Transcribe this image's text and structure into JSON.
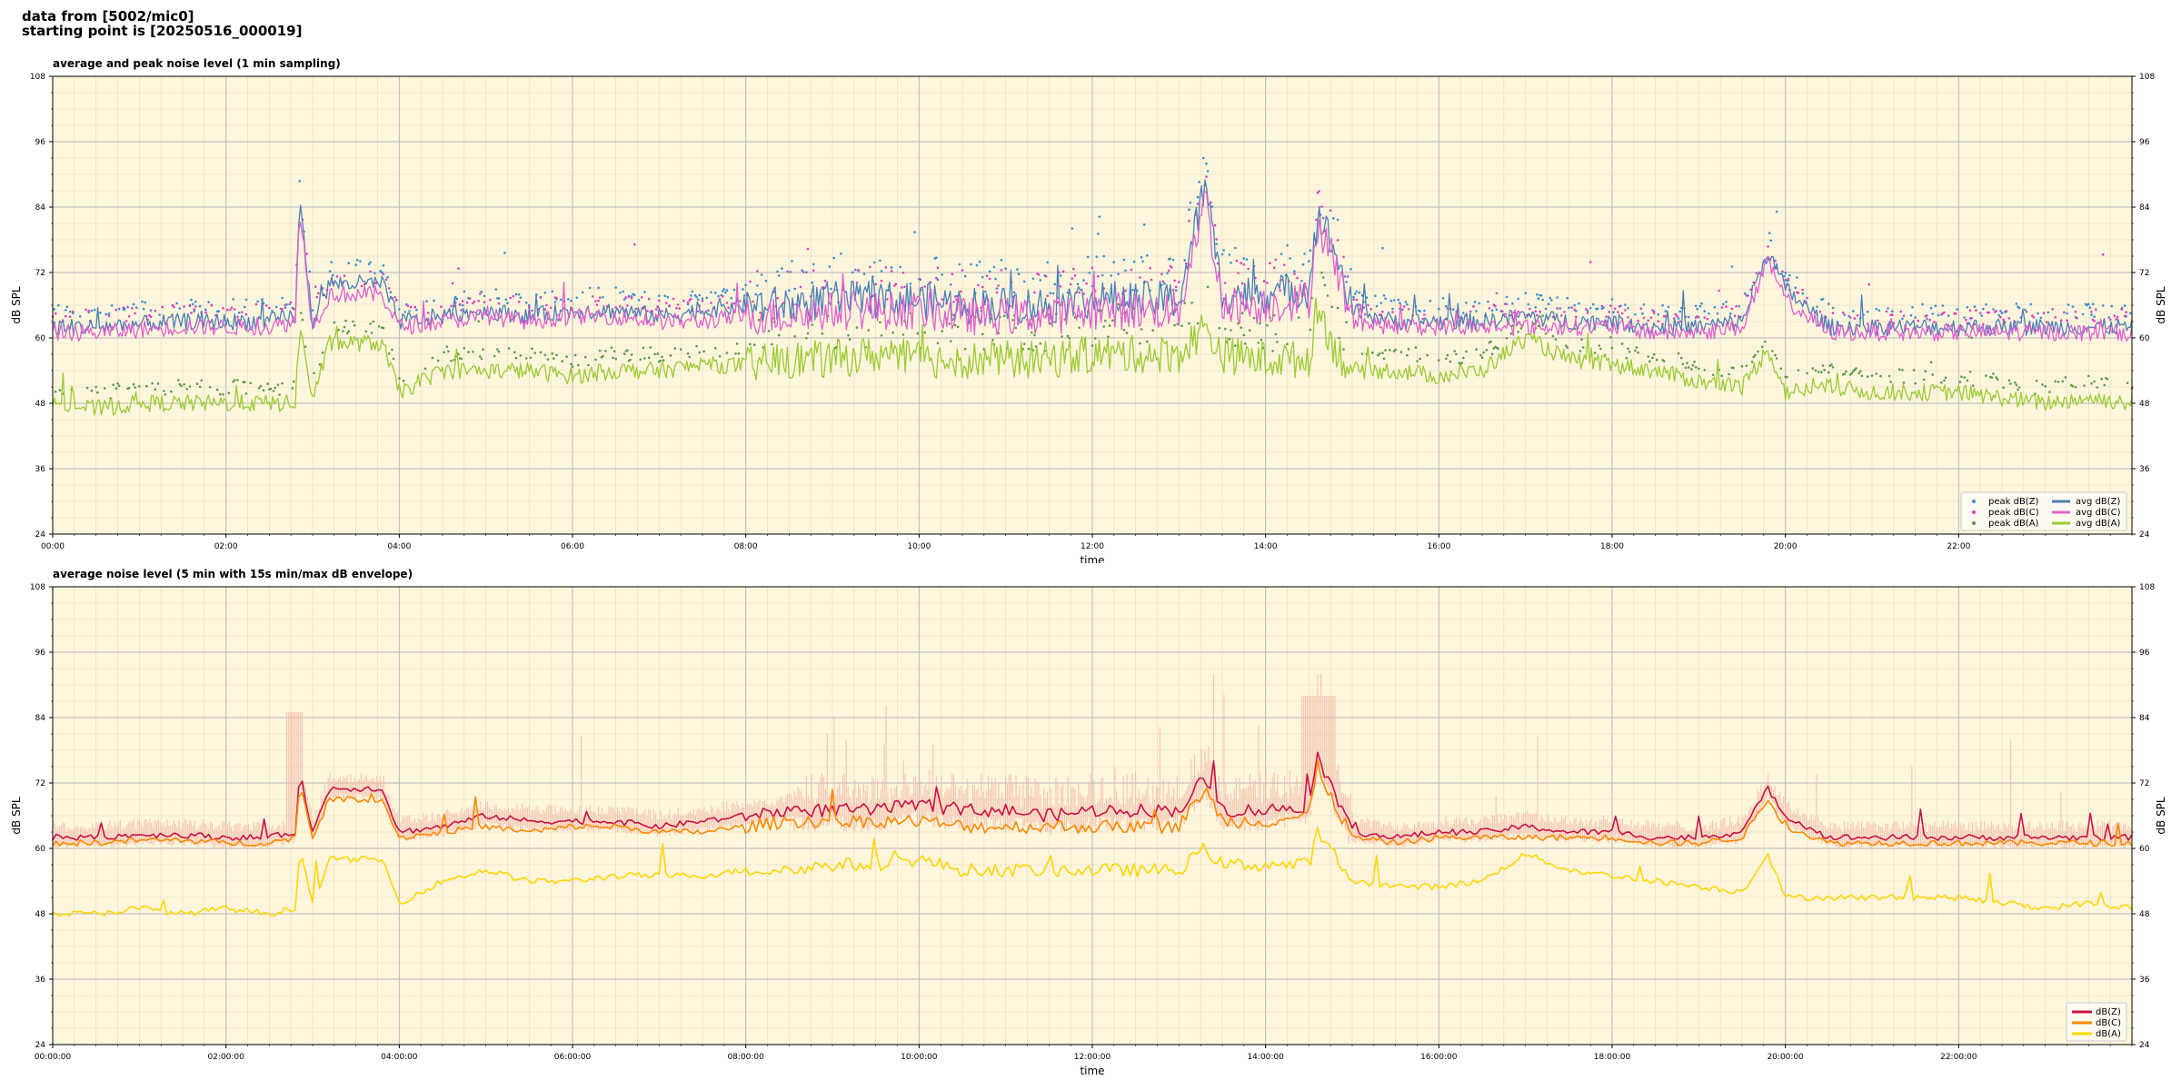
{
  "header": {
    "line1": "data from [5002/mic0]",
    "line2": "starting point is [20250516_000019]"
  },
  "chart_data": [
    {
      "type": "line",
      "title": "average and peak noise level (1 min sampling)",
      "xlabel": "time",
      "ylabel": "dB SPL",
      "ylim": [
        24,
        108
      ],
      "xlim_hours": [
        0,
        24
      ],
      "yticks": [
        "24",
        "36",
        "48",
        "60",
        "72",
        "84",
        "96",
        "108"
      ],
      "xticks": [
        "00:00",
        "02:00",
        "04:00",
        "06:00",
        "08:00",
        "10:00",
        "12:00",
        "14:00",
        "16:00",
        "18:00",
        "20:00",
        "22:00"
      ],
      "grid": true,
      "legend_position": "bottom-right",
      "legend": [
        "peak dB(Z)",
        "peak dB(C)",
        "peak dB(A)",
        "avg dB(Z)",
        "avg dB(C)",
        "avg dB(A)"
      ],
      "colors": {
        "Z": "#4a7fb5",
        "C": "#e060d0",
        "A": "#99cc33",
        "Zpeak": "#3a8fd0",
        "Cpeak": "#e040c0",
        "Apeak": "#5a9a4a"
      },
      "series": [
        {
          "name": "avg dB(Z)",
          "x": [
            0,
            0.5,
            1,
            1.5,
            2,
            2.5,
            2.8,
            2.85,
            3.0,
            3.2,
            3.5,
            3.8,
            4.0,
            4.5,
            5,
            5.5,
            6,
            6.5,
            7,
            7.5,
            8,
            8.5,
            9,
            9.5,
            10,
            10.5,
            11,
            11.5,
            12,
            12.5,
            13,
            13.3,
            13.5,
            14,
            14.5,
            14.6,
            14.8,
            15,
            15.5,
            16,
            16.5,
            17,
            17.5,
            18,
            18.5,
            19,
            19.5,
            19.8,
            20,
            20.5,
            21,
            21.5,
            22,
            22.5,
            23,
            23.5,
            24
          ],
          "y": [
            62,
            62,
            62.5,
            63,
            63,
            63,
            64,
            85,
            63,
            70,
            70,
            70,
            63,
            64,
            65,
            64,
            65,
            65,
            64,
            65,
            66,
            66,
            67,
            67,
            67,
            66,
            66,
            66,
            67,
            67,
            67,
            88,
            68,
            68,
            69,
            83,
            76,
            65,
            63,
            63,
            63,
            64,
            63,
            63,
            62,
            62,
            63,
            76,
            69,
            62,
            62,
            62,
            62,
            62,
            62,
            62,
            62
          ]
        },
        {
          "name": "avg dB(C)",
          "x": [
            0,
            0.5,
            1,
            1.5,
            2,
            2.5,
            2.8,
            2.85,
            3.0,
            3.2,
            3.5,
            3.8,
            4.0,
            4.5,
            5,
            5.5,
            6,
            6.5,
            7,
            7.5,
            8,
            8.5,
            9,
            9.5,
            10,
            10.5,
            11,
            11.5,
            12,
            12.5,
            13,
            13.3,
            13.5,
            14,
            14.5,
            14.6,
            14.8,
            15,
            15.5,
            16,
            16.5,
            17,
            17.5,
            18,
            18.5,
            19,
            19.5,
            19.8,
            20,
            20.5,
            21,
            21.5,
            22,
            22.5,
            23,
            23.5,
            24
          ],
          "y": [
            61,
            61,
            61.5,
            62,
            62,
            62,
            63,
            84,
            62,
            68,
            68,
            68,
            62,
            63,
            64,
            63,
            64,
            64,
            63,
            63,
            64,
            64,
            65,
            65,
            65,
            64,
            64,
            64,
            65,
            65,
            65,
            86,
            66,
            66,
            67,
            81,
            74,
            63,
            62,
            62,
            62,
            62,
            62,
            62,
            61,
            61,
            62,
            74,
            67,
            61,
            61,
            61,
            61,
            61,
            61,
            61,
            61
          ]
        },
        {
          "name": "avg dB(A)",
          "x": [
            0,
            0.5,
            1,
            1.5,
            2,
            2.5,
            2.8,
            2.85,
            3.0,
            3.2,
            3.5,
            3.8,
            4.0,
            4.5,
            5,
            5.5,
            6,
            6.5,
            7,
            7.5,
            8,
            8.5,
            9,
            9.5,
            10,
            10.5,
            11,
            11.5,
            12,
            12.5,
            13,
            13.3,
            13.5,
            14,
            14.5,
            14.6,
            14.8,
            15,
            15.5,
            16,
            16.5,
            17,
            17.5,
            18,
            18.5,
            19,
            19.5,
            19.8,
            20,
            20.5,
            21,
            21.5,
            22,
            22.5,
            23,
            23.5,
            24
          ],
          "y": [
            48,
            47,
            48,
            48,
            48,
            48,
            48,
            62,
            49,
            59,
            59,
            59,
            50,
            54,
            54,
            54,
            53,
            54,
            54,
            55,
            55,
            56,
            56,
            57,
            56,
            56,
            56,
            56,
            57,
            57,
            57,
            62,
            57,
            56,
            56,
            66,
            58,
            54,
            54,
            53,
            54,
            60,
            56,
            55,
            54,
            52,
            51,
            58,
            50,
            51,
            50,
            50,
            50,
            49,
            48,
            49,
            48
          ]
        }
      ]
    },
    {
      "type": "line",
      "title": "average noise level (5 min with 15s min/max dB envelope)",
      "xlabel": "time",
      "ylabel": "dB SPL",
      "ylim": [
        24,
        108
      ],
      "xlim_hours": [
        0,
        24
      ],
      "yticks": [
        "24",
        "36",
        "48",
        "60",
        "72",
        "84",
        "96",
        "108"
      ],
      "xticks": [
        "00:00:00",
        "02:00:00",
        "04:00:00",
        "06:00:00",
        "08:00:00",
        "10:00:00",
        "12:00:00",
        "14:00:00",
        "16:00:00",
        "18:00:00",
        "20:00:00",
        "22:00:00"
      ],
      "grid": true,
      "legend_position": "bottom-right",
      "legend": [
        "dB(Z)",
        "dB(C)",
        "dB(A)"
      ],
      "colors": {
        "Z": "#cc1144",
        "C": "#ff8800",
        "A": "#ffd700",
        "envelope": "#f4b8a8"
      },
      "series": [
        {
          "name": "dB(Z)",
          "x": [
            0,
            0.5,
            1,
            1.5,
            2,
            2.5,
            2.8,
            2.85,
            3.0,
            3.2,
            3.5,
            3.8,
            4.0,
            4.5,
            5,
            5.5,
            6,
            6.5,
            7,
            7.5,
            8,
            8.5,
            9,
            9.5,
            10,
            10.5,
            11,
            11.5,
            12,
            12.5,
            13,
            13.3,
            13.5,
            14,
            14.5,
            14.6,
            14.8,
            15,
            15.5,
            16,
            16.5,
            17,
            17.5,
            18,
            18.5,
            19,
            19.5,
            19.8,
            20,
            20.5,
            21,
            21.5,
            22,
            22.5,
            23,
            23.5,
            24
          ],
          "y": [
            62,
            62,
            62.5,
            62.5,
            62,
            62,
            63,
            74,
            63,
            71,
            71,
            71,
            63,
            64,
            66,
            65,
            65,
            65,
            64,
            65,
            66,
            67,
            67,
            67,
            68,
            67,
            67,
            66,
            67,
            67,
            67,
            73,
            67,
            67,
            68,
            77,
            70,
            63,
            62,
            63,
            63,
            64,
            63,
            63,
            62,
            62,
            63,
            71,
            66,
            62,
            62,
            62,
            62,
            62,
            62,
            62,
            62
          ]
        },
        {
          "name": "dB(C)",
          "x": [
            0,
            0.5,
            1,
            1.5,
            2,
            2.5,
            2.8,
            2.85,
            3.0,
            3.2,
            3.5,
            3.8,
            4.0,
            4.5,
            5,
            5.5,
            6,
            6.5,
            7,
            7.5,
            8,
            8.5,
            9,
            9.5,
            10,
            10.5,
            11,
            11.5,
            12,
            12.5,
            13,
            13.3,
            13.5,
            14,
            14.5,
            14.6,
            14.8,
            15,
            15.5,
            16,
            16.5,
            17,
            17.5,
            18,
            18.5,
            19,
            19.5,
            19.8,
            20,
            20.5,
            21,
            21.5,
            22,
            22.5,
            23,
            23.5,
            24
          ],
          "y": [
            61,
            61,
            61.5,
            61.5,
            61,
            61,
            62,
            72,
            62,
            69,
            69,
            69,
            62,
            63,
            64,
            63,
            64,
            64,
            63,
            63,
            64,
            65,
            65,
            65,
            65,
            64,
            64,
            64,
            64,
            64,
            64,
            71,
            65,
            65,
            66,
            75,
            68,
            62,
            61,
            62,
            62,
            62,
            62,
            62,
            61,
            61,
            62,
            69,
            64,
            61,
            61,
            61,
            61,
            61,
            61,
            61,
            61
          ]
        },
        {
          "name": "dB(A)",
          "x": [
            0,
            0.5,
            1,
            1.5,
            2,
            2.5,
            2.8,
            2.85,
            3.0,
            3.2,
            3.5,
            3.8,
            4.0,
            4.5,
            5,
            5.5,
            6,
            6.5,
            7,
            7.5,
            8,
            8.5,
            9,
            9.5,
            10,
            10.5,
            11,
            11.5,
            12,
            12.5,
            13,
            13.3,
            13.5,
            14,
            14.5,
            14.6,
            14.8,
            15,
            15.5,
            16,
            16.5,
            17,
            17.5,
            18,
            18.5,
            19,
            19.5,
            19.8,
            20,
            20.5,
            21,
            21.5,
            22,
            22.5,
            23,
            23.5,
            24
          ],
          "y": [
            48,
            48,
            49,
            48,
            49,
            48,
            49,
            60,
            50,
            58,
            58,
            58,
            50,
            54,
            56,
            54,
            54,
            55,
            55,
            55,
            56,
            56,
            57,
            57,
            58,
            56,
            56,
            56,
            56,
            56,
            56,
            60,
            57,
            57,
            57,
            63,
            58,
            54,
            53,
            53,
            54,
            59,
            56,
            55,
            54,
            53,
            52,
            59,
            51,
            51,
            51,
            51,
            51,
            50,
            49,
            50,
            49
          ]
        }
      ]
    }
  ]
}
